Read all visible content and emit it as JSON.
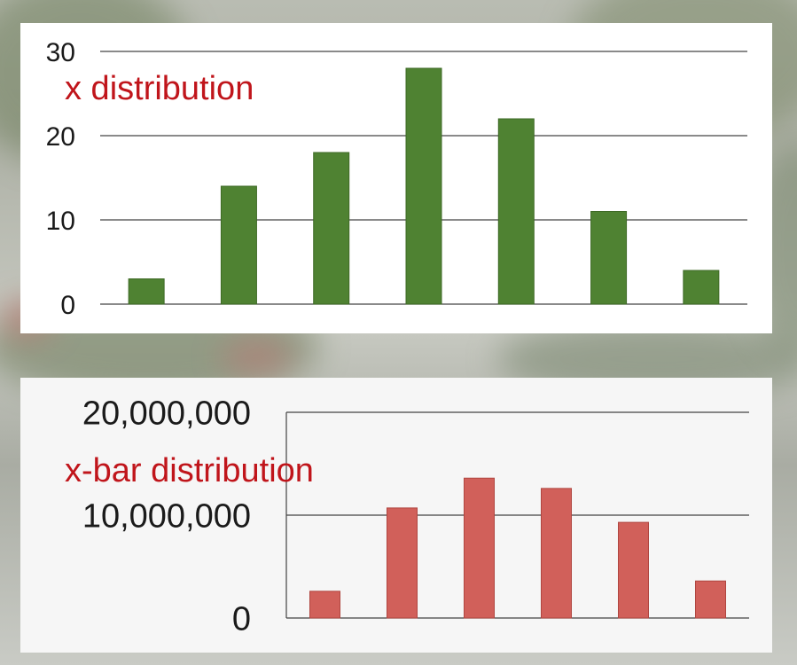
{
  "colors": {
    "green_bar": "#4f8232",
    "green_bar_edge": "#3e6a26",
    "red_bar": "#d1605a",
    "red_bar_edge": "#b04640",
    "title": "#c0151b",
    "grid": "#444444"
  },
  "chart_data": [
    {
      "type": "bar",
      "title": "x distribution",
      "categories": [
        "",
        "",
        "",
        "",
        "",
        "",
        ""
      ],
      "values": [
        3,
        14,
        18,
        28,
        22,
        11,
        4
      ],
      "ylim": [
        0,
        30
      ],
      "yticks": [
        0,
        10,
        20,
        30
      ],
      "ytick_labels": [
        "0",
        "10",
        "20",
        "30"
      ],
      "grid": true,
      "bar_color": "green"
    },
    {
      "type": "bar",
      "title": "x-bar distribution",
      "categories": [
        "",
        "",
        "",
        "",
        "",
        ""
      ],
      "values": [
        2600000,
        10700000,
        13600000,
        12600000,
        9300000,
        3600000
      ],
      "ylim": [
        0,
        20000000
      ],
      "yticks": [
        0,
        10000000,
        20000000
      ],
      "ytick_labels": [
        "0",
        "10,000,000",
        "20,000,000"
      ],
      "grid": true,
      "bar_color": "red"
    }
  ]
}
